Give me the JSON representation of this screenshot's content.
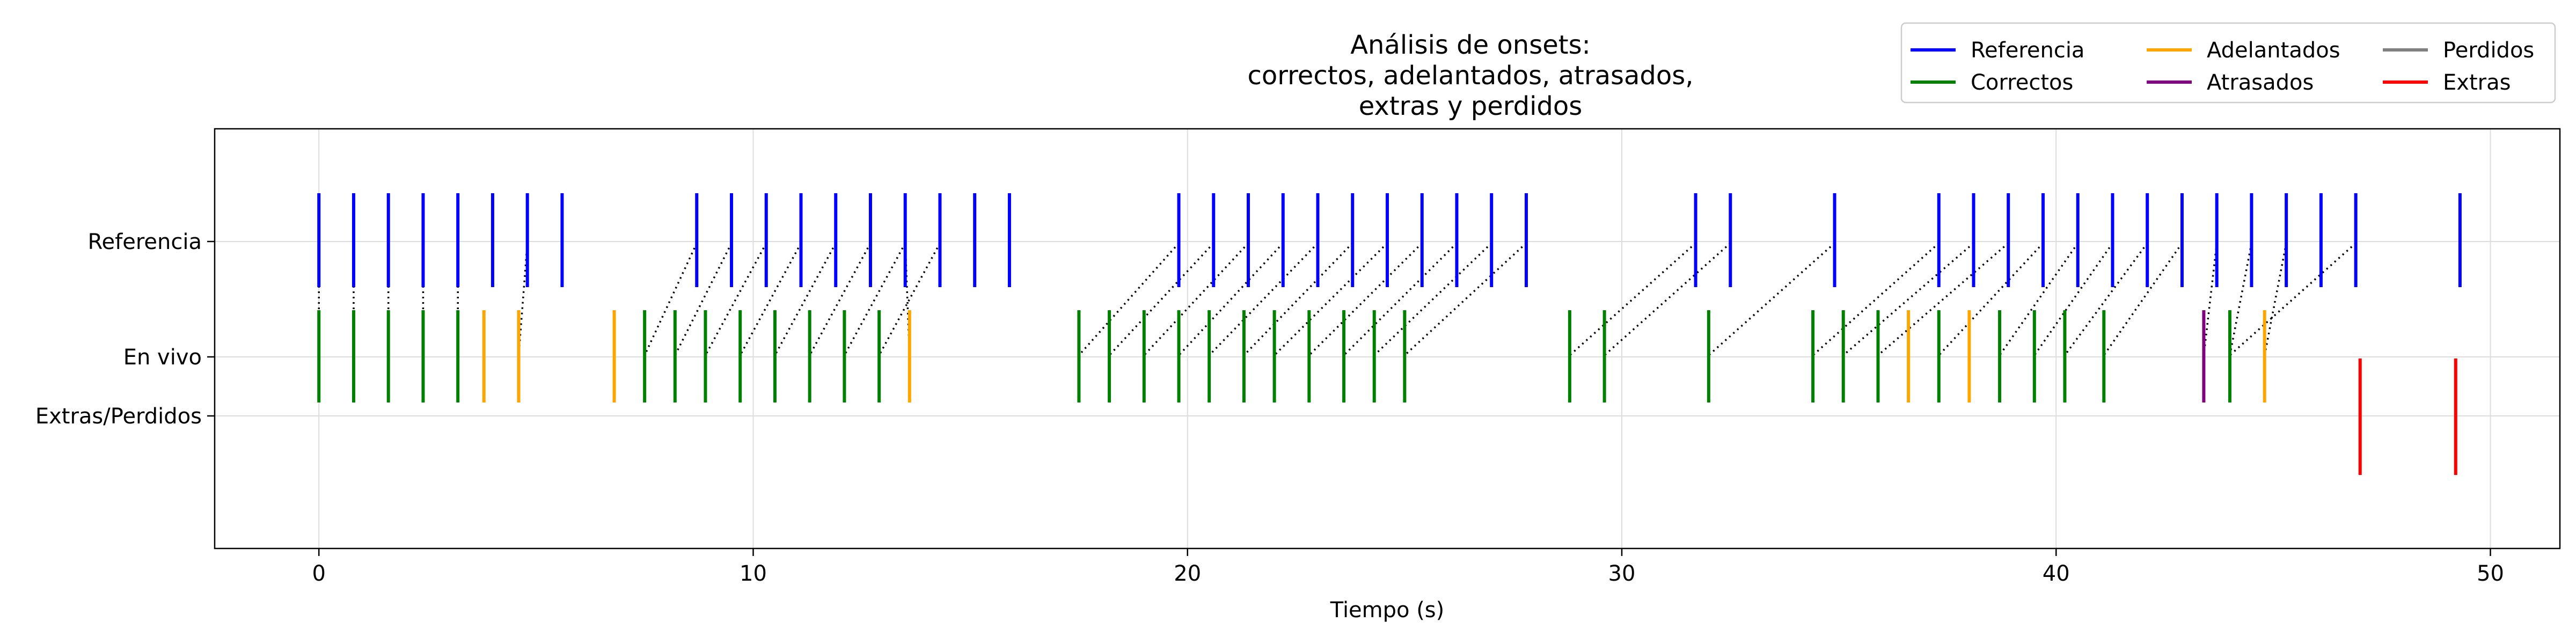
{
  "chart_data": {
    "type": "event",
    "title_lines": [
      "Análisis de onsets:",
      "correctos, adelantados, atrasados,",
      "extras y perdidos"
    ],
    "xlabel": "Tiempo (s)",
    "ylabel": "",
    "xlim": [
      -2.4,
      51.6
    ],
    "x_ticks": [
      0,
      10,
      20,
      30,
      40,
      50
    ],
    "y_ticks": [
      "Referencia",
      "En vivo",
      "Extras/Perdidos"
    ],
    "grid": true,
    "legend_position": "top-right",
    "legend": [
      {
        "label": "Referencia",
        "color": "#0000ff"
      },
      {
        "label": "Correctos",
        "color": "#008000"
      },
      {
        "label": "Adelantados",
        "color": "#ffa500"
      },
      {
        "label": "Atrasados",
        "color": "#800080"
      },
      {
        "label": "Perdidos",
        "color": "#808080"
      },
      {
        "label": "Extras",
        "color": "#ff0000"
      }
    ],
    "colors": {
      "referencia": "#0000ff",
      "correctos": "#008000",
      "adelantados": "#ffa500",
      "atrasados": "#800080",
      "perdidos": "#808080",
      "extras": "#ff0000"
    },
    "referencia": [
      0,
      0.8,
      1.6,
      2.4,
      3.2,
      4.0,
      4.8,
      5.6,
      8.7,
      9.5,
      10.3,
      11.1,
      11.9,
      12.7,
      13.5,
      14.3,
      15.1,
      15.9,
      19.8,
      20.6,
      21.4,
      22.2,
      23.0,
      23.8,
      24.6,
      25.4,
      26.2,
      27.0,
      27.8,
      31.7,
      32.5,
      34.9,
      37.3,
      38.1,
      38.9,
      39.7,
      40.5,
      41.3,
      42.1,
      42.9,
      43.7,
      44.5,
      45.3,
      46.1,
      46.9,
      49.3
    ],
    "correctos": [
      0,
      0.8,
      1.6,
      2.4,
      3.2,
      4.6,
      7.5,
      8.2,
      8.9,
      9.7,
      10.5,
      11.3,
      12.1,
      12.9,
      17.5,
      18.2,
      19.0,
      19.8,
      20.5,
      21.3,
      22.0,
      22.8,
      23.6,
      24.3,
      25.0,
      28.8,
      29.6,
      32.0,
      34.4,
      35.1,
      35.9,
      37.3,
      38.7,
      39.5,
      40.2,
      41.1,
      44.0
    ],
    "adelantados": [
      3.8,
      4.6,
      6.8,
      13.6,
      36.6,
      38.0,
      44.8
    ],
    "atrasados": [
      43.4
    ],
    "perdidos": [],
    "extras": [
      47.0,
      49.2
    ],
    "links": [
      [
        0,
        0
      ],
      [
        0.8,
        0.8
      ],
      [
        1.6,
        1.6
      ],
      [
        2.4,
        2.4
      ],
      [
        3.2,
        3.2
      ],
      [
        4.8,
        4.6
      ],
      [
        8.7,
        7.5
      ],
      [
        9.5,
        8.2
      ],
      [
        10.3,
        8.9
      ],
      [
        11.1,
        9.7
      ],
      [
        11.9,
        10.5
      ],
      [
        12.7,
        11.3
      ],
      [
        13.5,
        12.1
      ],
      [
        14.3,
        12.9
      ],
      [
        13.5,
        13.6
      ],
      [
        19.8,
        17.5
      ],
      [
        20.6,
        18.2
      ],
      [
        21.4,
        19.0
      ],
      [
        22.2,
        19.8
      ],
      [
        23.0,
        20.5
      ],
      [
        23.8,
        21.3
      ],
      [
        24.6,
        22.0
      ],
      [
        25.4,
        22.8
      ],
      [
        26.2,
        23.6
      ],
      [
        27.0,
        24.3
      ],
      [
        27.8,
        25.0
      ],
      [
        31.7,
        28.8
      ],
      [
        32.5,
        29.6
      ],
      [
        34.9,
        32.0
      ],
      [
        37.3,
        34.4
      ],
      [
        38.1,
        35.1
      ],
      [
        38.9,
        35.9
      ],
      [
        39.7,
        37.3
      ],
      [
        40.5,
        38.7
      ],
      [
        41.3,
        39.5
      ],
      [
        42.1,
        40.2
      ],
      [
        42.9,
        41.1
      ],
      [
        43.7,
        43.4
      ],
      [
        44.5,
        44.0
      ],
      [
        45.3,
        44.8
      ],
      [
        46.9,
        44.0
      ]
    ]
  }
}
